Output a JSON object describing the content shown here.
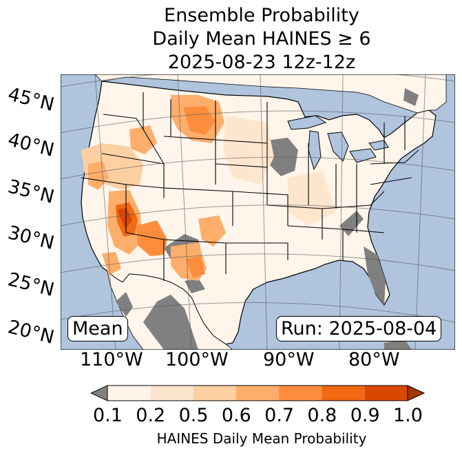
{
  "title": {
    "line1": "Ensemble Probability",
    "line2": "Daily Mean HAINES ≥ 6",
    "line3": "2025-08-23 12z-12z"
  },
  "map": {
    "lat_labels": [
      "45°N",
      "40°N",
      "35°N",
      "30°N",
      "25°N",
      "20°N"
    ],
    "lon_labels": [
      "110°W",
      "100°W",
      "90°W",
      "80°W"
    ],
    "stat_box": "Mean",
    "run_box": "Run: 2025-08-04",
    "colors": {
      "ocean": "#b0c4de",
      "land_low": "#fff5eb",
      "missing": "#808080",
      "state_lines": "#000000",
      "graticule": "#555555"
    },
    "regions": [
      {
        "name": "Southwest Arizona / Sonoran desert",
        "level_range": [
          0.7,
          0.9
        ]
      },
      {
        "name": "Southwest New Mexico / West Texas",
        "level_range": [
          0.6,
          0.8
        ]
      },
      {
        "name": "Central Montana",
        "level_range": [
          0.6,
          0.7
        ]
      },
      {
        "name": "Great Basin / Northern California",
        "level_range": [
          0.5,
          0.7
        ]
      },
      {
        "name": "Rest of CONUS",
        "level_range": [
          0.1,
          0.2
        ]
      }
    ]
  },
  "colorbar": {
    "ticks": [
      "0.1",
      "0.2",
      "0.5",
      "0.6",
      "0.7",
      "0.8",
      "0.9",
      "1.0"
    ],
    "colors": [
      "#fff5eb",
      "#fee6ce",
      "#fdd0a2",
      "#fdae6b",
      "#fd8d3c",
      "#f16913",
      "#d94801",
      "#a63603"
    ],
    "under_color": "#808080",
    "label": "HAINES Daily Mean Probability"
  }
}
